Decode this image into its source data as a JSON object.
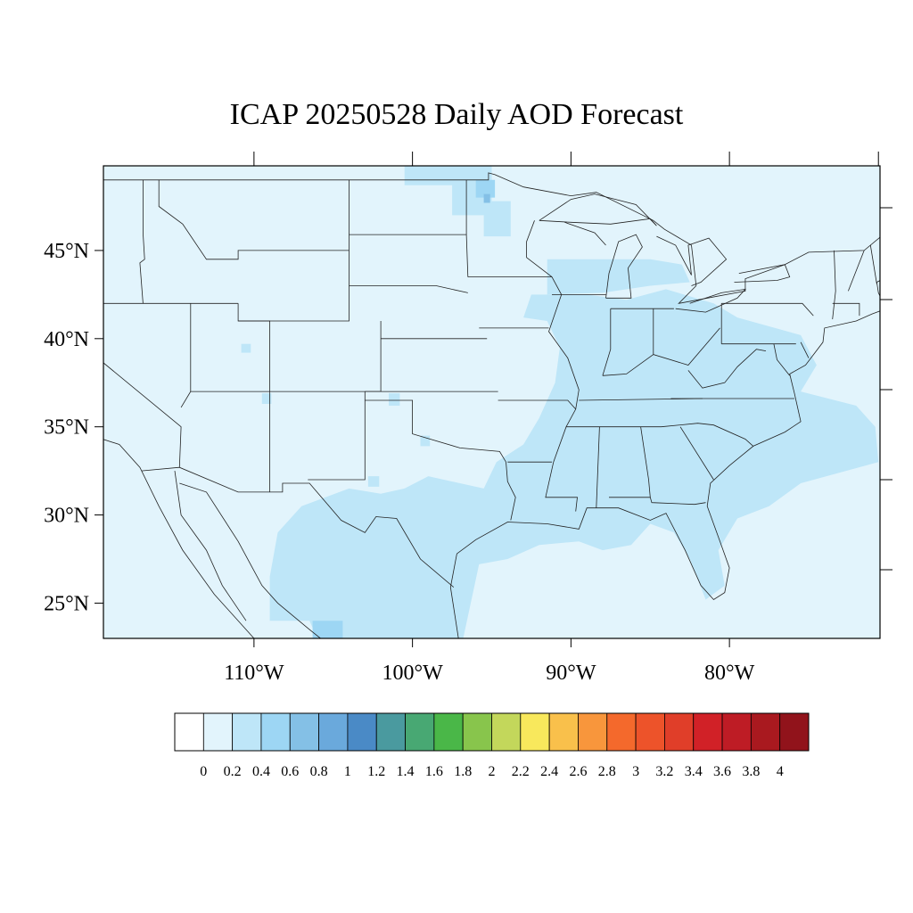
{
  "title": "ICAP 20250528 Daily AOD Forecast",
  "map": {
    "projection": "equirectangular",
    "lon_range": [
      -119.5,
      -70.5
    ],
    "lat_range": [
      23,
      49.8
    ],
    "background_color": "#e2f4fc",
    "y_ticks": [
      {
        "lat": 45,
        "label": "45°N"
      },
      {
        "lat": 40,
        "label": "40°N"
      },
      {
        "lat": 35,
        "label": "35°N"
      },
      {
        "lat": 30,
        "label": "30°N"
      },
      {
        "lat": 25,
        "label": "25°N"
      }
    ],
    "x_ticks": [
      {
        "lon": -110,
        "label": "110°W"
      },
      {
        "lon": -100,
        "label": "100°W"
      },
      {
        "lon": -90,
        "label": "90°W"
      },
      {
        "lon": -80,
        "label": "80°W"
      }
    ],
    "aod_regions": [
      {
        "name": "great-plains-north",
        "level": 2,
        "poly": [
          [
            -100.5,
            49.8
          ],
          [
            -95,
            49.8
          ],
          [
            -95,
            47.8
          ],
          [
            -93.8,
            47.8
          ],
          [
            -93.8,
            45.8
          ],
          [
            -95.5,
            45.8
          ],
          [
            -95.5,
            47
          ],
          [
            -97.5,
            47
          ],
          [
            -97.5,
            48.7
          ],
          [
            -100.5,
            48.7
          ]
        ]
      },
      {
        "name": "minnesota-core",
        "level": 3,
        "poly": [
          [
            -96,
            49
          ],
          [
            -94.8,
            49
          ],
          [
            -94.8,
            48
          ],
          [
            -96,
            48
          ]
        ]
      },
      {
        "name": "minnesota-peak",
        "level": 4,
        "poly": [
          [
            -95.5,
            48.2
          ],
          [
            -95.1,
            48.2
          ],
          [
            -95.1,
            47.7
          ],
          [
            -95.5,
            47.7
          ]
        ]
      },
      {
        "name": "midwest-east",
        "level": 2,
        "poly": [
          [
            -92.5,
            42.5
          ],
          [
            -89,
            42.5
          ],
          [
            -86.5,
            42.2
          ],
          [
            -84,
            42.8
          ],
          [
            -81,
            42
          ],
          [
            -79.5,
            41.2
          ],
          [
            -75.5,
            40.2
          ],
          [
            -74.5,
            38.5
          ],
          [
            -75.5,
            37
          ],
          [
            -72,
            36.2
          ],
          [
            -70.8,
            35
          ],
          [
            -70.6,
            33
          ],
          [
            -75.5,
            31.8
          ],
          [
            -77.5,
            30.5
          ],
          [
            -79.5,
            29.8
          ],
          [
            -80.7,
            28
          ],
          [
            -80.3,
            26
          ],
          [
            -81.5,
            25.2
          ],
          [
            -82.5,
            27.5
          ],
          [
            -83.5,
            29
          ],
          [
            -85,
            29.5
          ],
          [
            -86.2,
            28.3
          ],
          [
            -88,
            28
          ],
          [
            -89.5,
            28.5
          ],
          [
            -92,
            28.3
          ],
          [
            -94,
            27.5
          ],
          [
            -95.8,
            27.2
          ],
          [
            -96.8,
            23
          ],
          [
            -106,
            23
          ],
          [
            -106.5,
            24
          ],
          [
            -109,
            24
          ],
          [
            -109,
            26.5
          ],
          [
            -108.5,
            29
          ],
          [
            -107,
            30.5
          ],
          [
            -104,
            31.5
          ],
          [
            -102,
            31.2
          ],
          [
            -100.5,
            31.5
          ],
          [
            -99,
            32.2
          ],
          [
            -95.5,
            31.5
          ],
          [
            -94.7,
            33
          ],
          [
            -93,
            34
          ],
          [
            -92,
            35.5
          ],
          [
            -91,
            37.5
          ],
          [
            -90.7,
            39.5
          ],
          [
            -91.5,
            41
          ],
          [
            -93,
            41.2
          ]
        ]
      },
      {
        "name": "texas-south",
        "level": 3,
        "poly": [
          [
            -106.3,
            23
          ],
          [
            -104.4,
            23
          ],
          [
            -104.4,
            24
          ],
          [
            -106.3,
            24
          ]
        ]
      },
      {
        "name": "west-spot-1",
        "level": 2,
        "poly": [
          [
            -110.8,
            39.7
          ],
          [
            -110.2,
            39.7
          ],
          [
            -110.2,
            39.2
          ],
          [
            -110.8,
            39.2
          ]
        ]
      },
      {
        "name": "west-spot-2",
        "level": 2,
        "poly": [
          [
            -109.5,
            36.9
          ],
          [
            -108.9,
            36.9
          ],
          [
            -108.9,
            36.3
          ],
          [
            -109.5,
            36.3
          ]
        ]
      },
      {
        "name": "kansas-spot",
        "level": 2,
        "poly": [
          [
            -101.5,
            36.9
          ],
          [
            -100.8,
            36.9
          ],
          [
            -100.8,
            36.2
          ],
          [
            -101.5,
            36.2
          ]
        ]
      },
      {
        "name": "oklahoma-spot",
        "level": 2,
        "poly": [
          [
            -99.5,
            34.5
          ],
          [
            -98.9,
            34.5
          ],
          [
            -98.9,
            33.9
          ],
          [
            -99.5,
            33.9
          ]
        ]
      },
      {
        "name": "nm-spot",
        "level": 2,
        "poly": [
          [
            -102.8,
            32.2
          ],
          [
            -102.1,
            32.2
          ],
          [
            -102.1,
            31.6
          ],
          [
            -102.8,
            31.6
          ]
        ]
      },
      {
        "name": "great-lakes-south",
        "level": 2,
        "poly": [
          [
            -91.5,
            44.5
          ],
          [
            -87,
            44.5
          ],
          [
            -85,
            44.5
          ],
          [
            -83,
            44.2
          ],
          [
            -82.5,
            43.2
          ],
          [
            -85,
            43
          ],
          [
            -88,
            42.6
          ],
          [
            -91.5,
            42.5
          ]
        ]
      },
      {
        "name": "east-coast-band",
        "level": 2,
        "poly": [
          [
            -78.5,
            40.5
          ],
          [
            -76,
            40.2
          ],
          [
            -76,
            39.4
          ],
          [
            -78.5,
            39.4
          ]
        ]
      }
    ]
  },
  "colorbar": {
    "colors": [
      "#ffffff",
      "#e2f4fc",
      "#bee6f8",
      "#9dd6f4",
      "#84c0e6",
      "#6aa9dc",
      "#4a8ac6",
      "#4a9a9f",
      "#48a873",
      "#4ab748",
      "#88c54c",
      "#c3d75b",
      "#f8e85c",
      "#f9c04b",
      "#f8963c",
      "#f4692c",
      "#ed532a",
      "#e03e29",
      "#d12127",
      "#be1c25",
      "#a9191f",
      "#91131b"
    ],
    "labels": [
      "0",
      "0.2",
      "0.4",
      "0.6",
      "0.8",
      "1",
      "1.2",
      "1.4",
      "1.6",
      "1.8",
      "2",
      "2.2",
      "2.4",
      "2.6",
      "2.8",
      "3",
      "3.2",
      "3.4",
      "3.6",
      "3.8",
      "4"
    ]
  }
}
